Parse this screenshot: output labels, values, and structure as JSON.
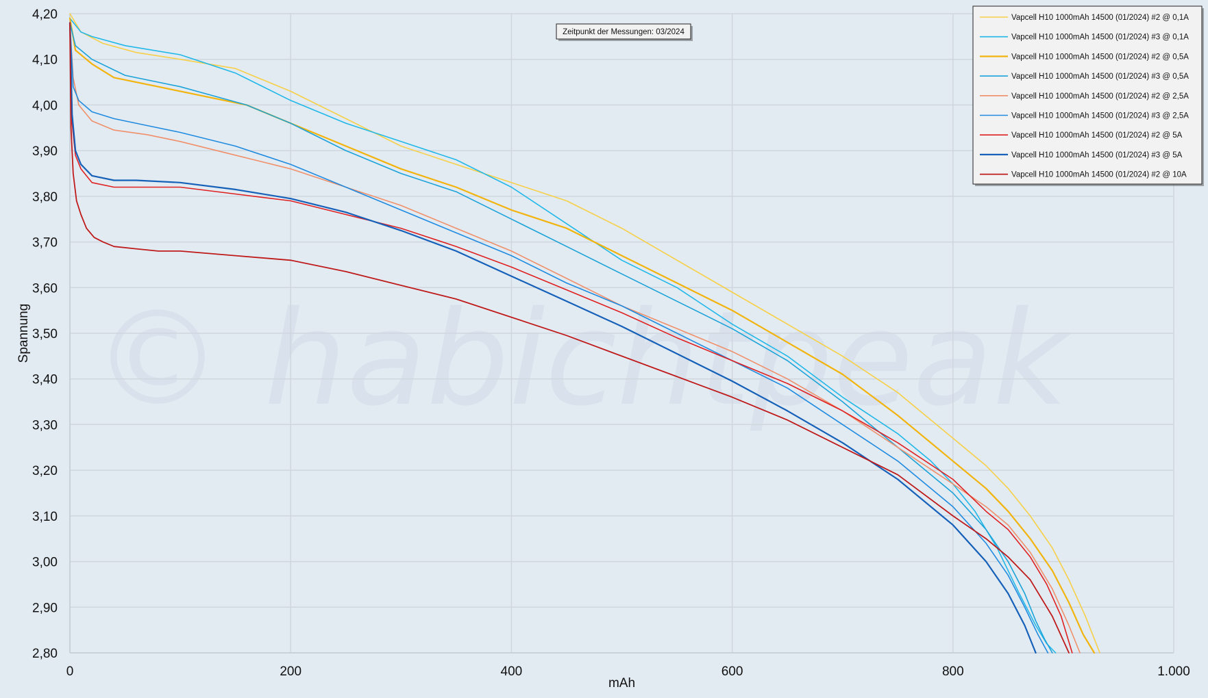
{
  "chart_data": {
    "type": "line",
    "title": "",
    "xlabel": "mAh",
    "ylabel": "Spannung",
    "xlim": [
      0,
      1000
    ],
    "ylim": [
      2.8,
      4.2
    ],
    "x_ticks": [
      "0",
      "200",
      "400",
      "600",
      "800",
      "1.000"
    ],
    "y_ticks": [
      "2,80",
      "2,90",
      "3,00",
      "3,10",
      "3,20",
      "3,30",
      "3,40",
      "3,50",
      "3,60",
      "3,70",
      "3,80",
      "3,90",
      "4,00",
      "4,10",
      "4,20"
    ],
    "grid": true,
    "legend_position": "top-right",
    "annotation": "Zeitpunkt der Messungen: 03/2024",
    "watermark": "© habichtpeak",
    "series": [
      {
        "name": "Vapcell H10 1000mAh 14500 (01/2024) #2 @ 0,1A",
        "color": "#f7d046",
        "width": 1.6,
        "x": [
          0,
          10,
          30,
          60,
          100,
          150,
          200,
          250,
          300,
          350,
          400,
          450,
          500,
          550,
          600,
          650,
          700,
          750,
          800,
          830,
          850,
          870,
          890,
          905,
          920,
          933
        ],
        "y": [
          4.2,
          4.16,
          4.135,
          4.115,
          4.1,
          4.08,
          4.03,
          3.97,
          3.91,
          3.87,
          3.83,
          3.79,
          3.73,
          3.66,
          3.59,
          3.52,
          3.45,
          3.37,
          3.27,
          3.21,
          3.16,
          3.1,
          3.03,
          2.96,
          2.88,
          2.8
        ]
      },
      {
        "name": "Vapcell H10 1000mAh 14500 (01/2024) #3 @ 0,1A",
        "color": "#20b8e8",
        "width": 1.6,
        "x": [
          0,
          10,
          20,
          50,
          100,
          150,
          200,
          250,
          300,
          350,
          400,
          450,
          500,
          550,
          600,
          650,
          700,
          750,
          780,
          800,
          820,
          840,
          860,
          875,
          885,
          893
        ],
        "y": [
          4.19,
          4.16,
          4.15,
          4.13,
          4.11,
          4.07,
          4.01,
          3.96,
          3.92,
          3.88,
          3.82,
          3.74,
          3.66,
          3.6,
          3.52,
          3.45,
          3.36,
          3.28,
          3.22,
          3.17,
          3.11,
          3.03,
          2.93,
          2.86,
          2.82,
          2.8
        ]
      },
      {
        "name": "Vapcell H10 1000mAh 14500 (01/2024) #2 @ 0,5A",
        "color": "#f2b40c",
        "width": 2.2,
        "x": [
          0,
          5,
          20,
          40,
          80,
          120,
          160,
          200,
          250,
          300,
          350,
          400,
          450,
          500,
          550,
          600,
          650,
          700,
          750,
          800,
          830,
          850,
          870,
          890,
          905,
          918,
          928
        ],
        "y": [
          4.19,
          4.12,
          4.09,
          4.06,
          4.04,
          4.02,
          4.0,
          3.96,
          3.91,
          3.86,
          3.82,
          3.77,
          3.73,
          3.67,
          3.61,
          3.55,
          3.48,
          3.41,
          3.32,
          3.22,
          3.16,
          3.11,
          3.05,
          2.98,
          2.91,
          2.84,
          2.8
        ]
      },
      {
        "name": "Vapcell H10 1000mAh 14500 (01/2024) #3 @ 0,5A",
        "color": "#1aa3d9",
        "width": 1.6,
        "x": [
          0,
          5,
          20,
          50,
          100,
          160,
          200,
          250,
          300,
          350,
          400,
          450,
          500,
          550,
          600,
          650,
          700,
          750,
          800,
          830,
          850,
          865,
          875,
          883,
          890
        ],
        "y": [
          4.18,
          4.13,
          4.1,
          4.065,
          4.04,
          4.0,
          3.96,
          3.9,
          3.85,
          3.81,
          3.75,
          3.69,
          3.63,
          3.57,
          3.51,
          3.44,
          3.35,
          3.25,
          3.15,
          3.07,
          3.0,
          2.93,
          2.87,
          2.83,
          2.8
        ]
      },
      {
        "name": "Vapcell H10 1000mAh 14500 (01/2024) #2 @ 2,5A",
        "color": "#f0906a",
        "width": 1.6,
        "x": [
          0,
          3,
          8,
          20,
          40,
          70,
          100,
          150,
          200,
          250,
          300,
          350,
          400,
          450,
          500,
          550,
          600,
          650,
          700,
          750,
          800,
          830,
          850,
          870,
          890,
          905,
          915
        ],
        "y": [
          4.18,
          4.06,
          4.0,
          3.965,
          3.945,
          3.935,
          3.92,
          3.89,
          3.86,
          3.82,
          3.78,
          3.73,
          3.68,
          3.62,
          3.56,
          3.51,
          3.46,
          3.4,
          3.33,
          3.25,
          3.17,
          3.12,
          3.08,
          3.02,
          2.94,
          2.86,
          2.8
        ]
      },
      {
        "name": "Vapcell H10 1000mAh 14500 (01/2024) #3 @ 2,5A",
        "color": "#1f8be0",
        "width": 1.6,
        "x": [
          0,
          3,
          8,
          20,
          40,
          70,
          100,
          150,
          200,
          250,
          300,
          350,
          400,
          450,
          500,
          550,
          600,
          650,
          700,
          750,
          800,
          830,
          850,
          865,
          877,
          886
        ],
        "y": [
          4.18,
          4.04,
          4.01,
          3.985,
          3.97,
          3.955,
          3.94,
          3.91,
          3.87,
          3.82,
          3.77,
          3.72,
          3.67,
          3.61,
          3.56,
          3.5,
          3.44,
          3.38,
          3.3,
          3.22,
          3.12,
          3.04,
          2.97,
          2.9,
          2.84,
          2.8
        ]
      },
      {
        "name": "Vapcell H10 1000mAh 14500 (01/2024) #2 @ 5A",
        "color": "#e02020",
        "width": 1.6,
        "x": [
          0,
          2,
          5,
          10,
          20,
          40,
          60,
          100,
          150,
          200,
          250,
          300,
          350,
          400,
          450,
          500,
          550,
          600,
          650,
          700,
          750,
          800,
          830,
          850,
          870,
          885,
          898,
          908
        ],
        "y": [
          4.18,
          3.96,
          3.89,
          3.86,
          3.83,
          3.82,
          3.82,
          3.82,
          3.805,
          3.79,
          3.76,
          3.73,
          3.69,
          3.645,
          3.595,
          3.545,
          3.49,
          3.44,
          3.39,
          3.33,
          3.26,
          3.18,
          3.11,
          3.07,
          3.01,
          2.95,
          2.88,
          2.8
        ]
      },
      {
        "name": "Vapcell H10 1000mAh 14500 (01/2024) #3 @ 5A",
        "color": "#1560b8",
        "width": 2.2,
        "x": [
          0,
          2,
          5,
          10,
          20,
          40,
          60,
          100,
          150,
          200,
          250,
          300,
          350,
          400,
          450,
          500,
          550,
          600,
          650,
          700,
          750,
          800,
          830,
          850,
          865,
          875
        ],
        "y": [
          4.18,
          3.98,
          3.9,
          3.87,
          3.845,
          3.835,
          3.835,
          3.83,
          3.815,
          3.795,
          3.765,
          3.725,
          3.68,
          3.625,
          3.57,
          3.515,
          3.455,
          3.395,
          3.33,
          3.26,
          3.18,
          3.08,
          3.0,
          2.93,
          2.86,
          2.8
        ]
      },
      {
        "name": "Vapcell H10 1000mAh 14500 (01/2024) #2 @ 10A",
        "color": "#bf1a1a",
        "width": 1.8,
        "x": [
          0,
          1,
          3,
          6,
          10,
          15,
          22,
          30,
          40,
          60,
          80,
          100,
          150,
          200,
          250,
          300,
          350,
          400,
          450,
          500,
          550,
          600,
          650,
          700,
          750,
          800,
          830,
          850,
          870,
          890,
          905
        ],
        "y": [
          4.18,
          3.95,
          3.85,
          3.79,
          3.76,
          3.73,
          3.71,
          3.7,
          3.69,
          3.685,
          3.68,
          3.68,
          3.67,
          3.66,
          3.635,
          3.605,
          3.575,
          3.535,
          3.495,
          3.45,
          3.405,
          3.36,
          3.31,
          3.25,
          3.19,
          3.1,
          3.05,
          3.01,
          2.96,
          2.88,
          2.8
        ]
      }
    ]
  }
}
